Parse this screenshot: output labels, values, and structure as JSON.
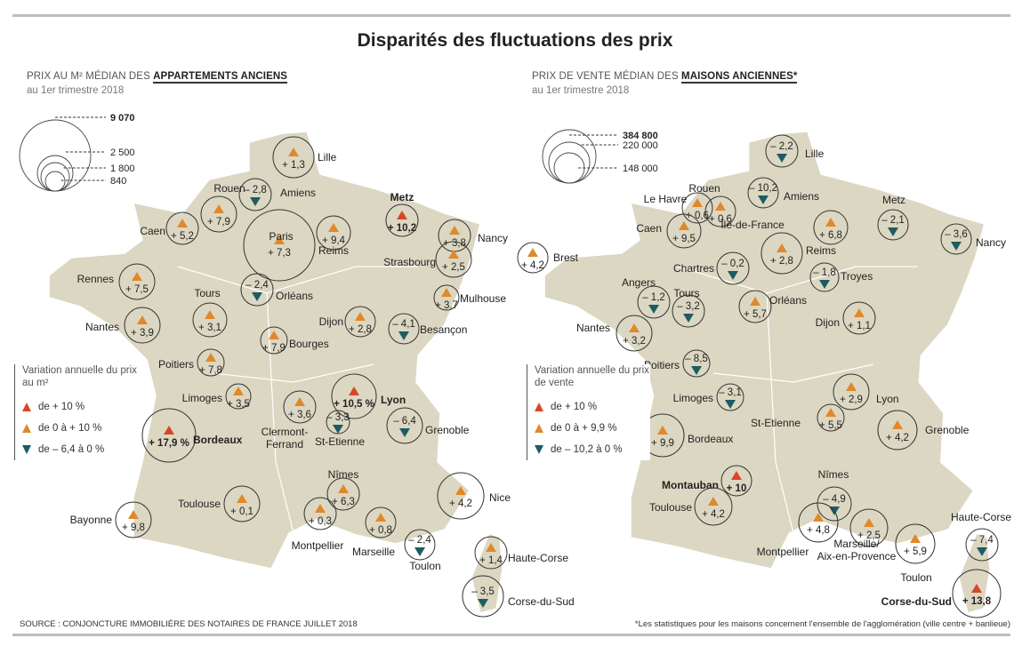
{
  "title": "Disparités des fluctuations des prix",
  "left": {
    "heading_prefix": "PRIX AU M² MÉDIAN DES ",
    "heading_bold": "APPARTEMENTS ANCIENS",
    "period": "au 1er trimestre 2018",
    "size_legend": [
      "9 070",
      "2 500",
      "1 800",
      "840"
    ],
    "legend": {
      "title": "Variation annuelle du prix au m²",
      "items": [
        "de + 10 %",
        "de 0 à + 10 %",
        "de – 6,4 à 0 %"
      ]
    },
    "cities": [
      {
        "name": "Lille",
        "value": "+ 1,3",
        "trend": "up"
      },
      {
        "name": "Amiens",
        "value": "– 2,8",
        "trend": "down"
      },
      {
        "name": "Rouen",
        "value": "+ 7,9",
        "trend": "up"
      },
      {
        "name": "Caen",
        "value": "+ 5,2",
        "trend": "up"
      },
      {
        "name": "Paris",
        "value": "+ 7,3",
        "trend": "up"
      },
      {
        "name": "Reims",
        "value": "+ 9,4",
        "trend": "up"
      },
      {
        "name": "Metz",
        "value": "+ 10,2",
        "trend": "high"
      },
      {
        "name": "Nancy",
        "value": "+ 3,8",
        "trend": "up"
      },
      {
        "name": "Strasbourg",
        "value": "+ 2,5",
        "trend": "up"
      },
      {
        "name": "Mulhouse",
        "value": "+ 3,7",
        "trend": "up"
      },
      {
        "name": "Rennes",
        "value": "+ 7,5",
        "trend": "up"
      },
      {
        "name": "Tours",
        "value": "+ 3,1",
        "trend": "up"
      },
      {
        "name": "Orléans",
        "value": "– 2,4",
        "trend": "down"
      },
      {
        "name": "Nantes",
        "value": "+ 3,9",
        "trend": "up"
      },
      {
        "name": "Dijon",
        "value": "+ 2,8",
        "trend": "up"
      },
      {
        "name": "Besançon",
        "value": "– 4,1",
        "trend": "down"
      },
      {
        "name": "Bourges",
        "value": "+ 7,9",
        "trend": "up"
      },
      {
        "name": "Poitiers",
        "value": "+ 7,8",
        "trend": "up"
      },
      {
        "name": "Limoges",
        "value": "+ 3,5",
        "trend": "up"
      },
      {
        "name": "Lyon",
        "value": "+ 10,5 %",
        "trend": "high"
      },
      {
        "name": "Clermont-Ferrand",
        "value": "+ 3,6",
        "trend": "up"
      },
      {
        "name": "St-Etienne",
        "value": "– 3,3",
        "trend": "down"
      },
      {
        "name": "Bordeaux",
        "value": "+ 17,9 %",
        "trend": "high"
      },
      {
        "name": "Grenoble",
        "value": "– 6,4",
        "trend": "down"
      },
      {
        "name": "Toulouse",
        "value": "+ 0,1",
        "trend": "up"
      },
      {
        "name": "Nîmes",
        "value": "+ 6,3",
        "trend": "up"
      },
      {
        "name": "Montpellier",
        "value": "+ 0,3",
        "trend": "up"
      },
      {
        "name": "Marseille",
        "value": "+ 0,8",
        "trend": "up"
      },
      {
        "name": "Toulon",
        "value": "– 2,4",
        "trend": "down"
      },
      {
        "name": "Nice",
        "value": "+ 4,2",
        "trend": "up"
      },
      {
        "name": "Bayonne",
        "value": "+ 9,8",
        "trend": "up"
      },
      {
        "name": "Haute-Corse",
        "value": "+ 1,4",
        "trend": "up"
      },
      {
        "name": "Corse-du-Sud",
        "value": "– 3,5",
        "trend": "down"
      }
    ]
  },
  "right": {
    "heading_prefix": "PRIX DE VENTE MÉDIAN DES ",
    "heading_bold": "MAISONS ANCIENNES*",
    "period": "au 1er trimestre 2018",
    "size_legend": [
      "384 800",
      "220 000",
      "148 000"
    ],
    "legend": {
      "title": "Variation annuelle du prix de vente",
      "items": [
        "de + 10 %",
        "de 0 à + 9,9 %",
        "de – 10,2 à 0 %"
      ]
    },
    "cities": [
      {
        "name": "Lille",
        "value": "– 2,2",
        "trend": "down"
      },
      {
        "name": "Amiens",
        "value": "– 10,2",
        "trend": "down"
      },
      {
        "name": "Rouen",
        "value": "+ 0,6",
        "trend": "up"
      },
      {
        "name": "Le Havre",
        "value": "+ 0,6",
        "trend": "up"
      },
      {
        "name": "Caen",
        "value": "+ 9,5",
        "trend": "up"
      },
      {
        "name": "Brest",
        "value": "+ 4,2",
        "trend": "up"
      },
      {
        "name": "Île-de-France",
        "value": "+ 2,8",
        "trend": "up"
      },
      {
        "name": "Reims",
        "value": "+ 6,8",
        "trend": "up"
      },
      {
        "name": "Metz",
        "value": "– 2,1",
        "trend": "down"
      },
      {
        "name": "Nancy",
        "value": "– 3,6",
        "trend": "down"
      },
      {
        "name": "Chartres",
        "value": "– 0,2",
        "trend": "down"
      },
      {
        "name": "Troyes",
        "value": "– 1,8",
        "trend": "down"
      },
      {
        "name": "Orléans",
        "value": "+ 5,7",
        "trend": "up"
      },
      {
        "name": "Angers",
        "value": "– 1,2",
        "trend": "down"
      },
      {
        "name": "Tours",
        "value": "– 3,2",
        "trend": "down"
      },
      {
        "name": "Nantes",
        "value": "+ 3,2",
        "trend": "up"
      },
      {
        "name": "Dijon",
        "value": "+ 1,1",
        "trend": "up"
      },
      {
        "name": "Poitiers",
        "value": "– 8,5",
        "trend": "down"
      },
      {
        "name": "Limoges",
        "value": "– 3,1",
        "trend": "down"
      },
      {
        "name": "Lyon",
        "value": "+ 2,9",
        "trend": "up"
      },
      {
        "name": "St-Etienne",
        "value": "+ 5,5",
        "trend": "up"
      },
      {
        "name": "Grenoble",
        "value": "+ 4,2",
        "trend": "up"
      },
      {
        "name": "Bordeaux",
        "value": "+ 9,9",
        "trend": "up"
      },
      {
        "name": "Montauban",
        "value": "+ 10",
        "trend": "high"
      },
      {
        "name": "Toulouse",
        "value": "+ 4,2",
        "trend": "up"
      },
      {
        "name": "Nîmes",
        "value": "– 4,9",
        "trend": "down"
      },
      {
        "name": "Montpellier",
        "value": "+ 4,8",
        "trend": "up"
      },
      {
        "name": "Marseille/ Aix-en-Provence",
        "value": "+ 2,5",
        "trend": "up"
      },
      {
        "name": "Toulon",
        "value": "+ 5,9",
        "trend": "up"
      },
      {
        "name": "Haute-Corse",
        "value": "– 7,4",
        "trend": "down"
      },
      {
        "name": "Corse-du-Sud",
        "value": "+ 13,8",
        "trend": "high"
      }
    ]
  },
  "source": "SOURCE : CONJONCTURE IMMOBILIÈRE DES NOTAIRES DE FRANCE JUILLET 2018",
  "footnote": "*Les statistiques pour les maisons concernent l'ensemble de l'agglomération (ville centre + banlieue)",
  "colors": {
    "map": "#dcd7c2",
    "high": "#d8462a",
    "up": "#e0892b",
    "down": "#1d5c62"
  }
}
